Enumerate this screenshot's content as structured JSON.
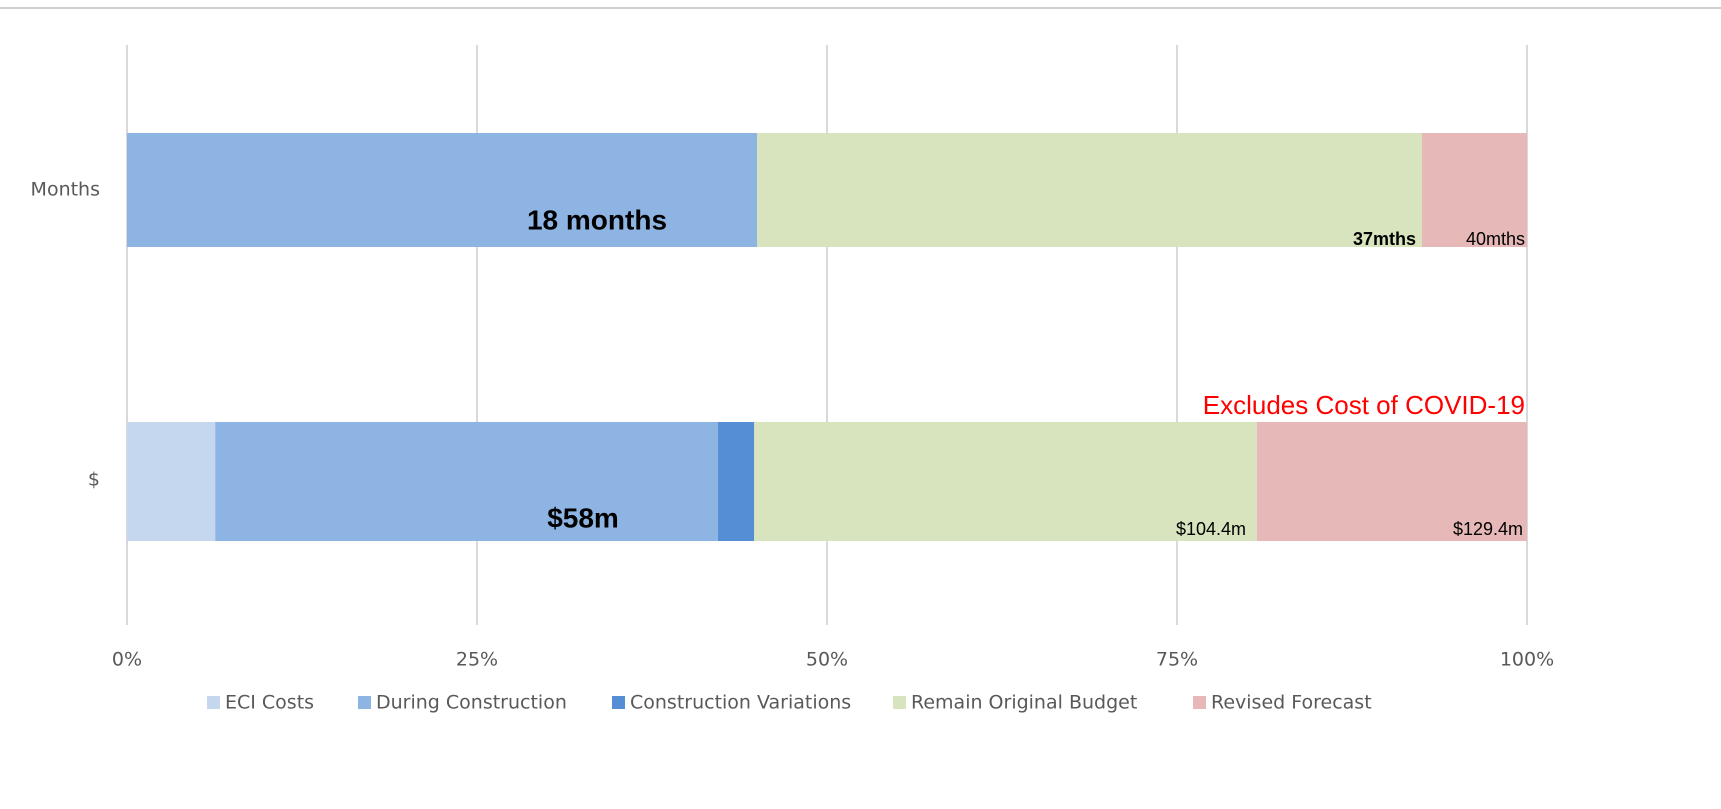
{
  "chart_data": {
    "type": "stacked_barh",
    "categories": [
      "Months",
      "$"
    ],
    "series": [
      {
        "name": "ECI Costs",
        "color": "#c5d7ee",
        "values": [
          0,
          6.3
        ]
      },
      {
        "name": "During Construction",
        "color": "#8eb4e3",
        "values": [
          45,
          35.9
        ]
      },
      {
        "name": "Construction Variations",
        "color": "#558ed5",
        "values": [
          0,
          2.6
        ]
      },
      {
        "name": "Remain Original Budget",
        "color": "#d7e4bd",
        "values": [
          47.5,
          35.9
        ]
      },
      {
        "name": "Revised Forecast",
        "color": "#e6b9b8",
        "values": [
          7.5,
          19.3
        ]
      }
    ],
    "xlim": [
      0,
      100
    ],
    "xticks": [
      {
        "value": 0,
        "label": "0%"
      },
      {
        "value": 25,
        "label": "25%"
      },
      {
        "value": 50,
        "label": "50%"
      },
      {
        "value": 75,
        "label": "75%"
      },
      {
        "value": 100,
        "label": "100%"
      }
    ],
    "grid": true,
    "legend": "bottom",
    "annotations": [
      {
        "text": "18 months"
      },
      {
        "text": "37mths"
      },
      {
        "text": "40mths"
      },
      {
        "text": "$58m"
      },
      {
        "text": "$104.4m"
      },
      {
        "text": "$129.4m"
      },
      {
        "text": "Excludes Cost of COVID-19",
        "color": "#ff0000"
      }
    ]
  }
}
